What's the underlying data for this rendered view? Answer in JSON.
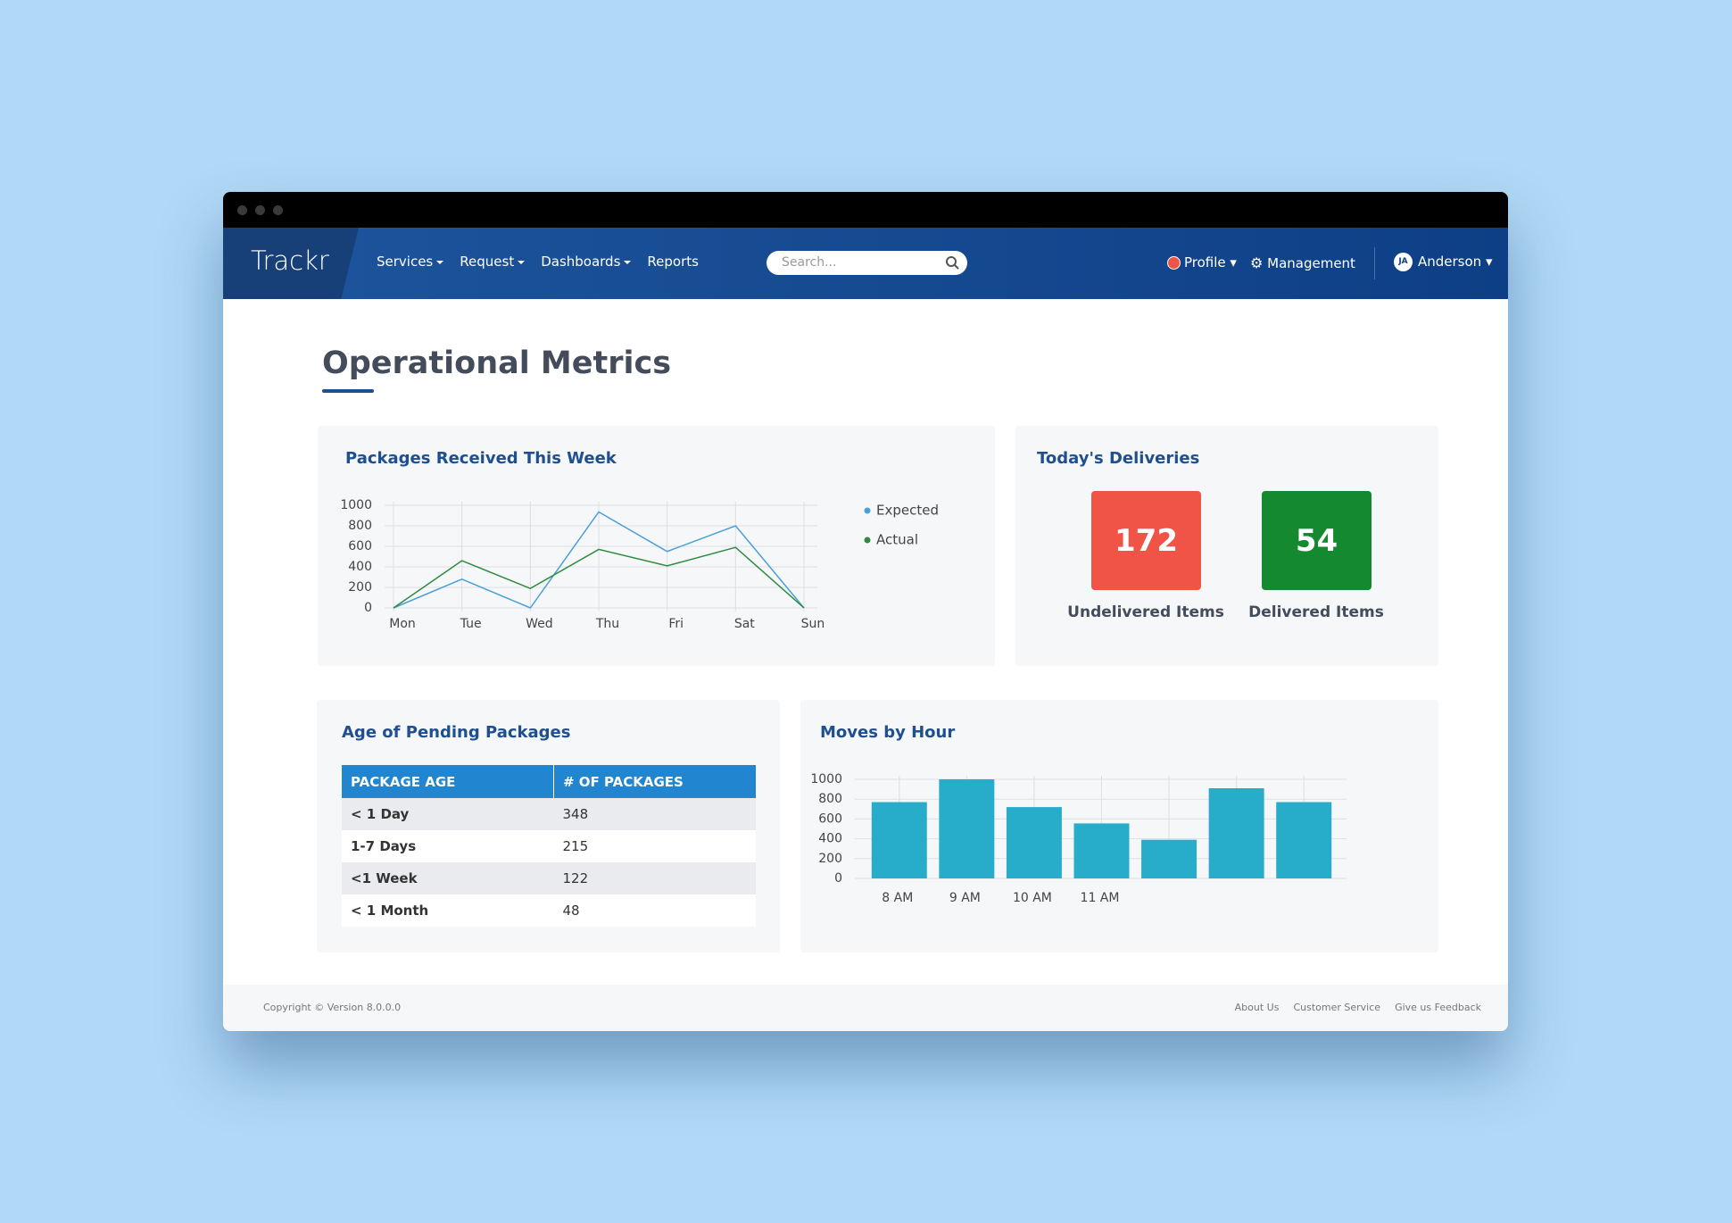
{
  "nav": {
    "brand": "Trackr",
    "menu": [
      {
        "label": "Services",
        "has_menu": true
      },
      {
        "label": "Request",
        "has_menu": true
      },
      {
        "label": "Dashboards",
        "has_menu": true
      },
      {
        "label": "Reports",
        "has_menu": false
      }
    ],
    "search_placeholder": "Search...",
    "profile": "Profile",
    "management": "Management",
    "avatar": "JA",
    "user": "Anderson"
  },
  "page_title": "Operational Metrics",
  "chart_data": [
    {
      "type": "line",
      "title": "Packages Received This Week",
      "categories": [
        "Mon",
        "Tue",
        "Wed",
        "Thu",
        "Fri",
        "Sat",
        "Sun"
      ],
      "series": [
        {
          "name": "Expected",
          "color": "#4a9fd8",
          "values": [
            0,
            280,
            0,
            935,
            550,
            800,
            0
          ]
        },
        {
          "name": "Actual",
          "color": "#2e8b3e",
          "values": [
            0,
            460,
            190,
            570,
            410,
            590,
            0
          ]
        }
      ],
      "ylim": [
        0,
        1000
      ],
      "yticks": [
        0,
        200,
        400,
        600,
        800,
        1000
      ],
      "grid": true
    },
    {
      "type": "bar",
      "title": "Moves by Hour",
      "categories": [
        "8 AM",
        "9 AM",
        "10 AM",
        "11 AM",
        null,
        null,
        null
      ],
      "values": [
        770,
        1000,
        720,
        555,
        390,
        910,
        770
      ],
      "color": "#27acc9",
      "ylim": [
        0,
        1000
      ],
      "yticks": [
        0,
        200,
        400,
        600,
        800,
        1000
      ],
      "grid": true
    }
  ],
  "deliveries": {
    "title": "Today's Deliveries",
    "items": [
      {
        "value": 172,
        "label": "Undelivered Items",
        "color": "#ef5446"
      },
      {
        "value": 54,
        "label": "Delivered Items",
        "color": "#14892f"
      }
    ]
  },
  "pending_table": {
    "title": "Age of Pending Packages",
    "header": [
      "PACKAGE AGE",
      "# OF PACKAGES"
    ],
    "rows": [
      [
        "< 1 Day",
        348
      ],
      [
        "1-7 Days",
        215
      ],
      [
        "<1 Week",
        122
      ],
      [
        "< 1 Month",
        48
      ]
    ]
  },
  "footer": {
    "copyright": "Copyright © Version 8.0.0.0",
    "links": [
      "About Us",
      "Customer Service",
      "Give us Feedback"
    ]
  }
}
